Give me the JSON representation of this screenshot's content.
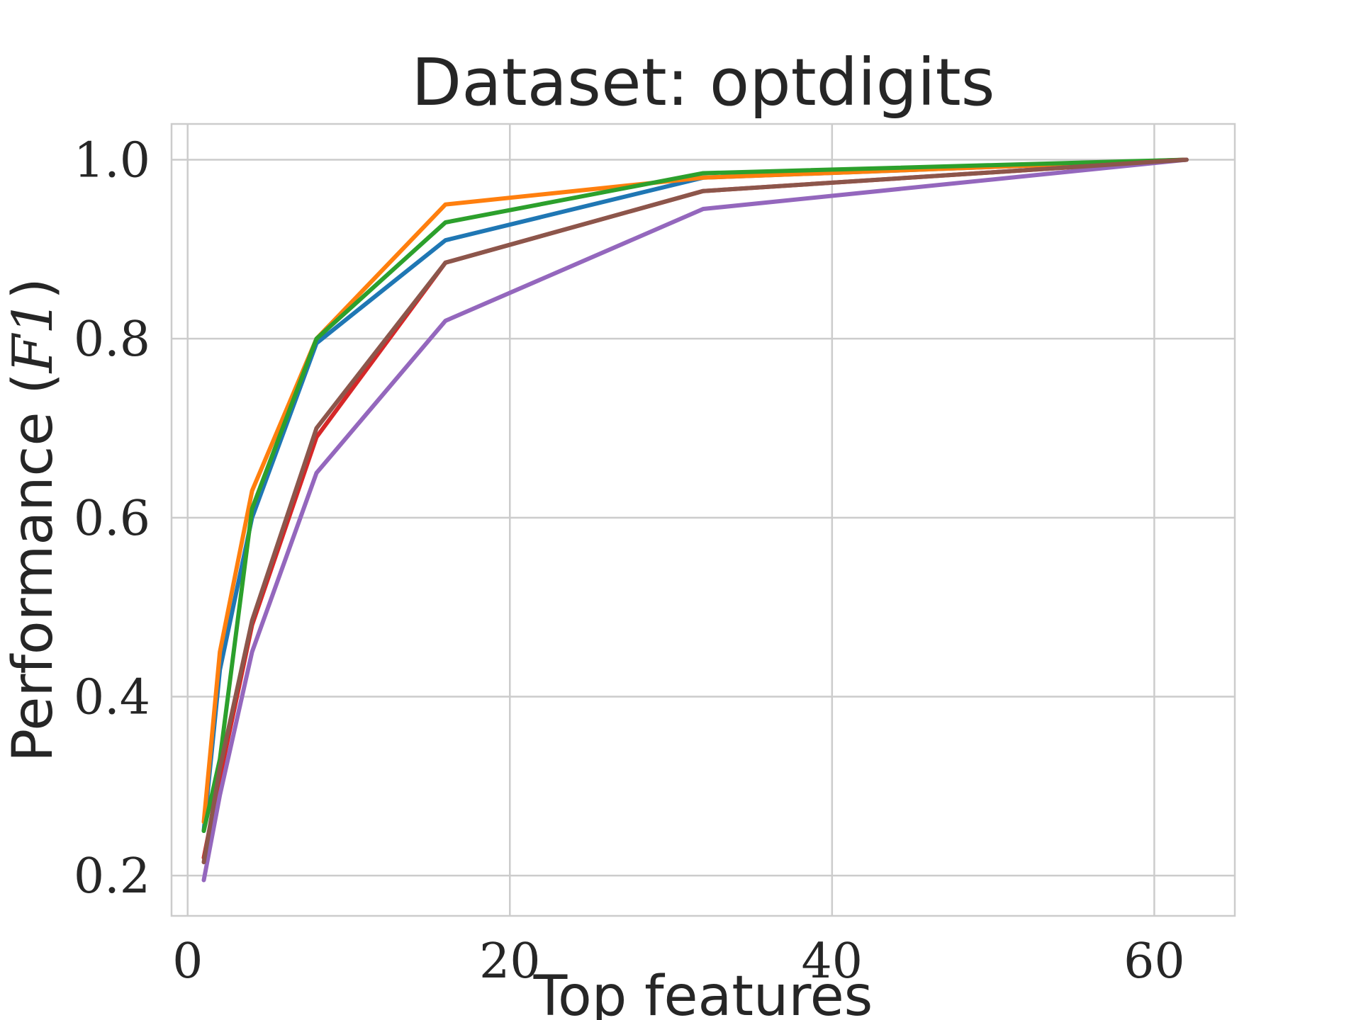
{
  "chart_data": {
    "type": "line",
    "title": "Dataset: optdigits",
    "xlabel": "Top features",
    "ylabel": "Performance (",
    "ylabel_math": "F1",
    "ylabel_close": ")",
    "xlim": [
      -1,
      65
    ],
    "ylim": [
      0.155,
      1.04
    ],
    "xticks": [
      0,
      20,
      40,
      60
    ],
    "xtick_labels": [
      "0",
      "20",
      "40",
      "60"
    ],
    "yticks": [
      0.2,
      0.4,
      0.6,
      0.8,
      1.0
    ],
    "ytick_labels": [
      "0.2",
      "0.4",
      "0.6",
      "0.8",
      "1.0"
    ],
    "grid": true,
    "x": [
      1,
      2,
      4,
      8,
      16,
      32,
      62
    ],
    "series": [
      {
        "color": "#1f77b4",
        "values": [
          0.25,
          0.43,
          0.6,
          0.795,
          0.91,
          0.98,
          1.0
        ]
      },
      {
        "color": "#ff7f0e",
        "values": [
          0.26,
          0.45,
          0.63,
          0.8,
          0.95,
          0.98,
          1.0
        ]
      },
      {
        "color": "#2ca02c",
        "values": [
          0.25,
          0.33,
          0.61,
          0.8,
          0.93,
          0.985,
          1.0
        ]
      },
      {
        "color": "#d62728",
        "values": [
          0.22,
          0.31,
          0.48,
          0.69,
          0.885,
          0.965,
          1.0
        ]
      },
      {
        "color": "#9467bd",
        "values": [
          0.195,
          0.29,
          0.45,
          0.65,
          0.82,
          0.945,
          1.0
        ]
      },
      {
        "color": "#8c564b",
        "values": [
          0.215,
          0.32,
          0.485,
          0.7,
          0.885,
          0.965,
          1.0
        ]
      }
    ]
  }
}
